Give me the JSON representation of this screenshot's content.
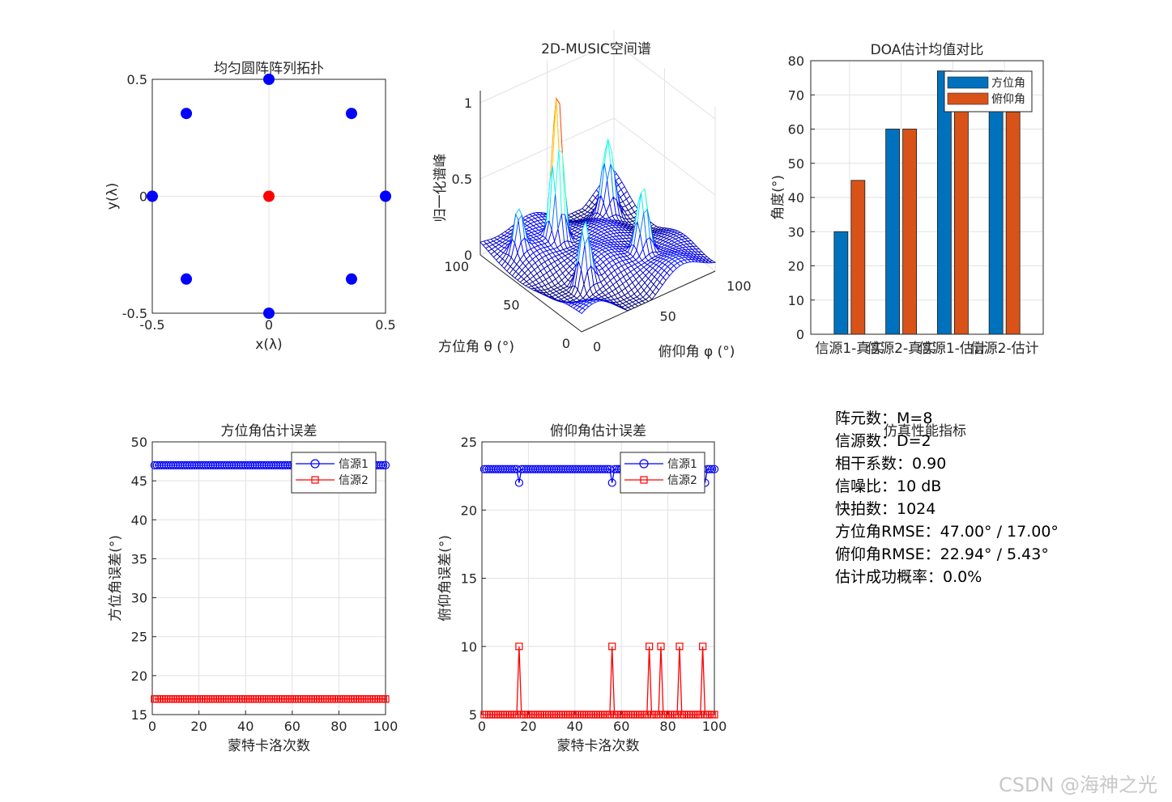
{
  "colors": {
    "blue": "#0000ff",
    "red": "#ff0000",
    "bar_az": "#0072bd",
    "bar_el": "#d95319",
    "axis": "#262626",
    "grid": "#e2e2e2"
  },
  "watermark": "CSDN @海神之光",
  "metrics": {
    "title": "仿真性能指标",
    "lines": [
      "阵元数：M=8",
      "信源数：D=2",
      "相干系数：0.90",
      "信噪比：10 dB",
      "快拍数：1024",
      "方位角RMSE：47.00° / 17.00°",
      "俯仰角RMSE：22.94° / 5.43°",
      "估计成功概率：0.0%"
    ]
  },
  "chart_data": [
    {
      "id": "array",
      "type": "scatter",
      "title": "均匀圆阵阵列拓扑",
      "xlabel": "x(λ)",
      "ylabel": "y(λ)",
      "xlim": [
        -0.5,
        0.5
      ],
      "ylim": [
        -0.5,
        0.5
      ],
      "xticks": [
        -0.5,
        0,
        0.5
      ],
      "yticks": [
        -0.5,
        0,
        0.5
      ],
      "grid": true,
      "series": [
        {
          "color": "#0000ff",
          "x": [
            0.5,
            0.354,
            0,
            -0.354,
            -0.5,
            -0.354,
            0,
            0.354
          ],
          "y": [
            0,
            0.354,
            0.5,
            0.354,
            0,
            -0.354,
            -0.5,
            -0.354
          ]
        },
        {
          "color": "#ff0000",
          "x": [
            0
          ],
          "y": [
            0
          ]
        }
      ]
    },
    {
      "id": "spectrum",
      "type": "surface",
      "title": "2D-MUSIC空间谱",
      "xlabel": "方位角 θ (°)",
      "ylabel": "俯仰角 φ (°)",
      "zlabel": "归一化谱峰",
      "zticks": [
        0,
        0.5,
        1
      ],
      "theta_ticks": [
        0,
        50,
        100
      ],
      "phi_ticks": [
        0,
        50,
        100
      ],
      "grid": true
    },
    {
      "id": "doa-bars",
      "type": "bar",
      "title": "DOA估计均值对比",
      "ylabel": "角度(°)",
      "ylim": [
        0,
        80
      ],
      "yticks": [
        0,
        10,
        20,
        30,
        40,
        50,
        60,
        70,
        80
      ],
      "categories": [
        "信源1-真实",
        "信源2-真实",
        "信源1-估计",
        "信源2-估计"
      ],
      "legend_position": "top-right",
      "grid": true,
      "series": [
        {
          "name": "方位角",
          "color": "#0072bd",
          "values": [
            30,
            60,
            77,
            77
          ]
        },
        {
          "name": "俯仰角",
          "color": "#d95319",
          "values": [
            45,
            60,
            67,
            65
          ]
        }
      ]
    },
    {
      "id": "az-error",
      "type": "line",
      "title": "方位角估计误差",
      "xlabel": "蒙特卡洛次数",
      "ylabel": "方位角误差(°)",
      "xlim": [
        0,
        100
      ],
      "ylim": [
        15,
        50
      ],
      "xticks": [
        0,
        20,
        40,
        60,
        80,
        100
      ],
      "yticks": [
        15,
        20,
        25,
        30,
        35,
        40,
        45,
        50
      ],
      "legend_position": "top-right",
      "grid": true,
      "series": [
        {
          "name": "信源1",
          "color": "#0000ff",
          "marker": "circle",
          "default": 47,
          "overrides": []
        },
        {
          "name": "信源2",
          "color": "#ff0000",
          "marker": "square",
          "default": 17,
          "overrides": []
        }
      ]
    },
    {
      "id": "el-error",
      "type": "line",
      "title": "俯仰角估计误差",
      "xlabel": "蒙特卡洛次数",
      "ylabel": "俯仰角误差(°)",
      "xlim": [
        0,
        100
      ],
      "ylim": [
        5,
        25
      ],
      "xticks": [
        0,
        20,
        40,
        60,
        80,
        100
      ],
      "yticks": [
        5,
        10,
        15,
        20,
        25
      ],
      "legend_position": "top-right",
      "grid": true,
      "series": [
        {
          "name": "信源1",
          "color": "#0000ff",
          "marker": "circle",
          "default": 23,
          "overrides": [
            [
              16,
              22
            ],
            [
              56,
              22
            ],
            [
              96,
              22
            ]
          ]
        },
        {
          "name": "信源2",
          "color": "#ff0000",
          "marker": "square",
          "default": 5,
          "overrides": [
            [
              16,
              10
            ],
            [
              56,
              10
            ],
            [
              72,
              10
            ],
            [
              77,
              10
            ],
            [
              85,
              10
            ],
            [
              95,
              10
            ]
          ]
        }
      ]
    }
  ]
}
